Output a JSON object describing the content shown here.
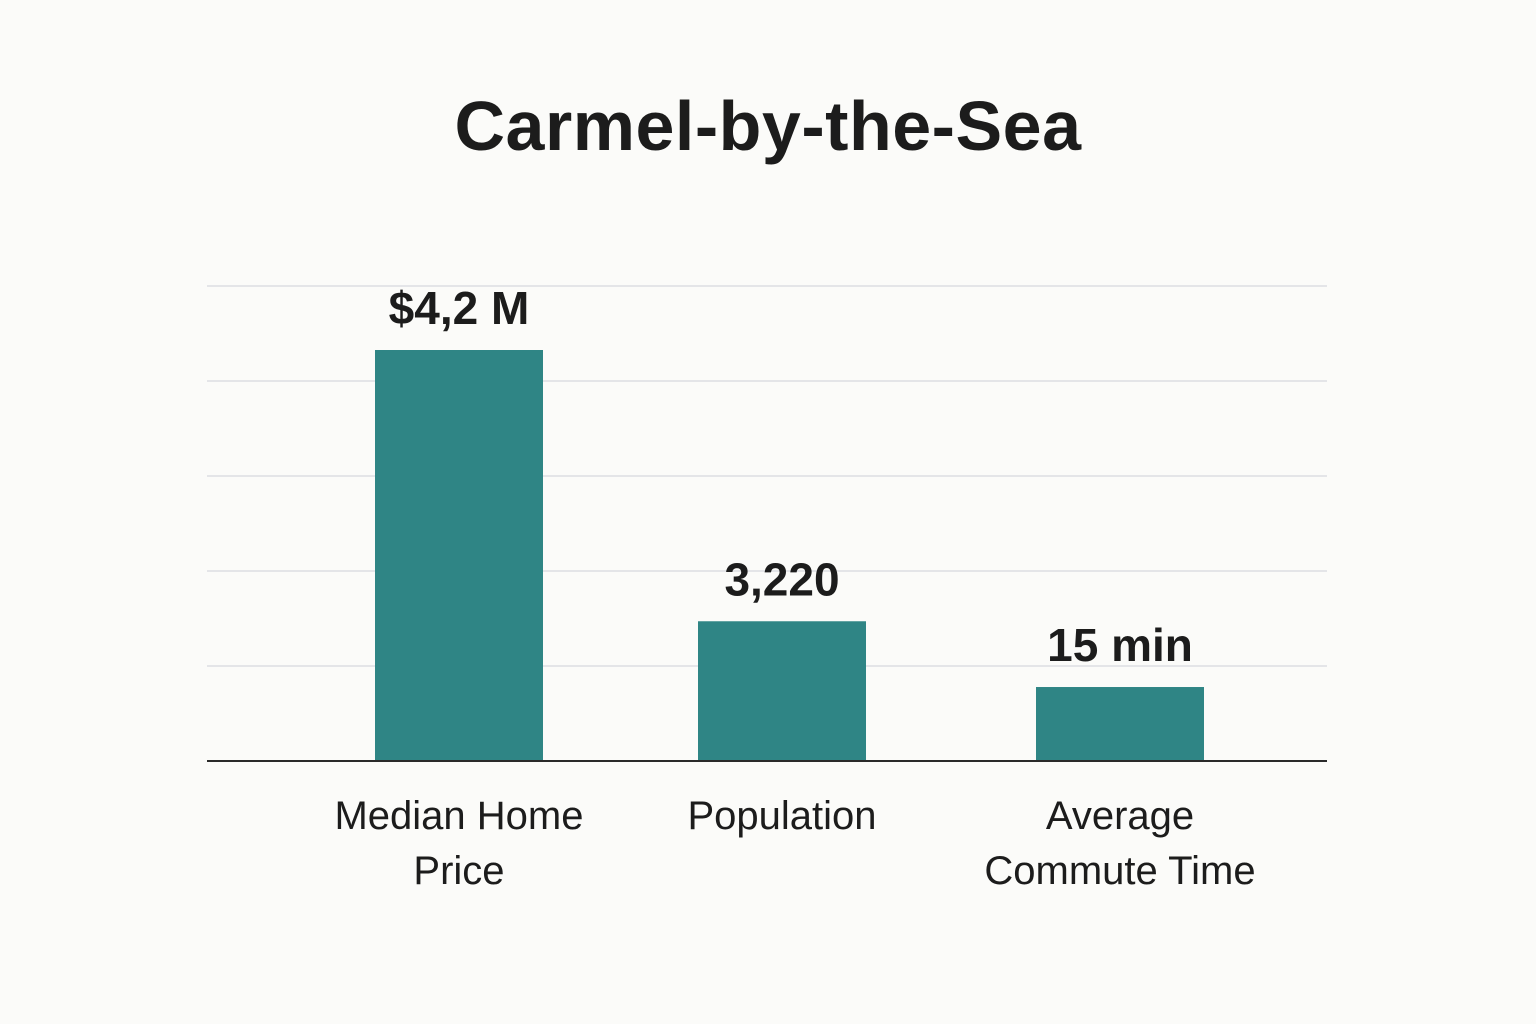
{
  "chart_data": {
    "type": "bar",
    "title": "Carmel-by-the-Sea",
    "categories": [
      [
        "Median Home",
        "Price"
      ],
      [
        "Population"
      ],
      [
        "Average",
        "Commute Time"
      ]
    ],
    "value_labels": [
      "$4,2 M",
      "3,220",
      "15 min"
    ],
    "relative_heights": [
      1.0,
      0.34,
      0.18
    ],
    "grid": true,
    "gridline_count": 5,
    "bar_color": "#2f8585",
    "grid_color": "#dcdee2",
    "axis_color": "#2a2a2a",
    "xlabel": "",
    "ylabel": ""
  }
}
